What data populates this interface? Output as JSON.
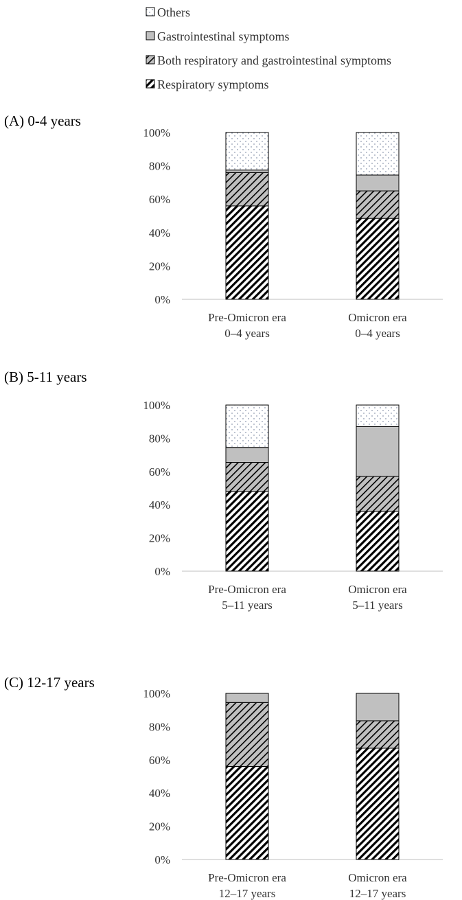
{
  "legend": {
    "items": [
      {
        "label": "Others",
        "pattern": "dots"
      },
      {
        "label": "Gastrointestinal symptoms",
        "pattern": "gray"
      },
      {
        "label": "Both respiratory and gastrointestinal symptoms",
        "pattern": "gray-hatch"
      },
      {
        "label": "Respiratory symptoms",
        "pattern": "hatch"
      }
    ]
  },
  "colors": {
    "gi_fill": "#c0c0c0",
    "stroke": "#000000",
    "axis": "#bfbfbf",
    "text": "#333333"
  },
  "chart_data": [
    {
      "type": "bar",
      "stacked": true,
      "title": "(A) 0-4 years",
      "categories": [
        {
          "line1": "Pre-Omicron era",
          "line2": "0–4 years"
        },
        {
          "line1": "Omicron era",
          "line2": "0–4 years"
        }
      ],
      "yticks": [
        "0%",
        "20%",
        "40%",
        "60%",
        "80%",
        "100%"
      ],
      "ylim": [
        0,
        100
      ],
      "series": [
        {
          "name": "Respiratory symptoms",
          "values": [
            56,
            48.5
          ]
        },
        {
          "name": "Both respiratory and gastrointestinal symptoms",
          "values": [
            20,
            16.5
          ]
        },
        {
          "name": "Gastrointestinal symptoms",
          "values": [
            1.5,
            9.5
          ]
        },
        {
          "name": "Others",
          "values": [
            22.5,
            25.5
          ]
        }
      ]
    },
    {
      "type": "bar",
      "stacked": true,
      "title": "(B) 5-11 years",
      "categories": [
        {
          "line1": "Pre-Omicron era",
          "line2": "5–11 years"
        },
        {
          "line1": "Omicron era",
          "line2": "5–11 years"
        }
      ],
      "yticks": [
        "0%",
        "20%",
        "40%",
        "60%",
        "80%",
        "100%"
      ],
      "ylim": [
        0,
        100
      ],
      "series": [
        {
          "name": "Respiratory symptoms",
          "values": [
            48,
            36
          ]
        },
        {
          "name": "Both respiratory and gastrointestinal symptoms",
          "values": [
            17.5,
            21
          ]
        },
        {
          "name": "Gastrointestinal symptoms",
          "values": [
            9,
            30
          ]
        },
        {
          "name": "Others",
          "values": [
            25.5,
            13
          ]
        }
      ]
    },
    {
      "type": "bar",
      "stacked": true,
      "title": "(C) 12-17 years",
      "categories": [
        {
          "line1": "Pre-Omicron era",
          "line2": "12–17 years"
        },
        {
          "line1": "Omicron era",
          "line2": "12–17 years"
        }
      ],
      "yticks": [
        "0%",
        "20%",
        "40%",
        "60%",
        "80%",
        "100%"
      ],
      "ylim": [
        0,
        100
      ],
      "series": [
        {
          "name": "Respiratory symptoms",
          "values": [
            56,
            67
          ]
        },
        {
          "name": "Both respiratory and gastrointestinal symptoms",
          "values": [
            38.5,
            16.5
          ]
        },
        {
          "name": "Gastrointestinal symptoms",
          "values": [
            5.5,
            16.5
          ]
        },
        {
          "name": "Others",
          "values": [
            0,
            0
          ]
        }
      ]
    }
  ]
}
